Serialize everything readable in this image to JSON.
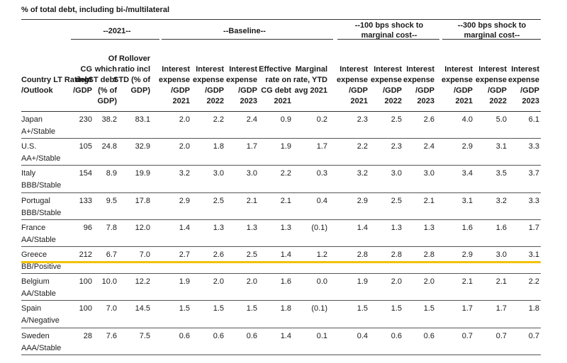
{
  "caption": "% of total debt, including bi-/multilateral",
  "groups": [
    "--2021--",
    "--Baseline--",
    "--100 bps shock to marginal cost--",
    "--300 bps shock to marginal cost--"
  ],
  "headers": [
    "Country LT Rating /Outlook",
    "CG debt /GDP",
    "Of which ST debt (% of GDP)",
    "Rollover ratio incl STD (% of GDP)",
    "Interest expense /GDP 2021",
    "Interest expense /GDP 2022",
    "Interest expense /GDP 2023",
    "Effective rate on CG debt 2021",
    "Marginal rate, YTD avg 2021",
    "Interest expense /GDP 2021",
    "Interest expense /GDP 2022",
    "Interest expense /GDP 2023",
    "Interest expense /GDP 2021",
    "Interest expense /GDP 2022",
    "Interest expense /GDP 2023"
  ],
  "rows": [
    {
      "country": "Japan",
      "rating": "A+/Stable",
      "v": [
        "230",
        "38.2",
        "83.1",
        "2.0",
        "2.2",
        "2.4",
        "0.9",
        "0.2",
        "2.3",
        "2.5",
        "2.6",
        "4.0",
        "5.0",
        "6.1"
      ]
    },
    {
      "country": "U.S.",
      "rating": "AA+/Stable",
      "v": [
        "105",
        "24.8",
        "32.9",
        "2.0",
        "1.8",
        "1.7",
        "1.9",
        "1.7",
        "2.2",
        "2.3",
        "2.4",
        "2.9",
        "3.1",
        "3.3"
      ]
    },
    {
      "country": "Italy",
      "rating": "BBB/Stable",
      "v": [
        "154",
        "8.9",
        "19.9",
        "3.2",
        "3.0",
        "3.0",
        "2.2",
        "0.3",
        "3.2",
        "3.0",
        "3.0",
        "3.4",
        "3.5",
        "3.7"
      ]
    },
    {
      "country": "Portugal",
      "rating": "BBB/Stable",
      "v": [
        "133",
        "9.5",
        "17.8",
        "2.9",
        "2.5",
        "2.1",
        "2.1",
        "0.4",
        "2.9",
        "2.5",
        "2.1",
        "3.1",
        "3.2",
        "3.3"
      ]
    },
    {
      "country": "France",
      "rating": "AA/Stable",
      "v": [
        "96",
        "7.8",
        "12.0",
        "1.4",
        "1.3",
        "1.3",
        "1.3",
        "(0.1)",
        "1.4",
        "1.3",
        "1.3",
        "1.6",
        "1.6",
        "1.7"
      ]
    },
    {
      "country": "Greece",
      "rating": "BB/Positive",
      "v": [
        "212",
        "6.7",
        "7.0",
        "2.7",
        "2.6",
        "2.5",
        "1.4",
        "1.2",
        "2.8",
        "2.8",
        "2.8",
        "2.9",
        "3.0",
        "3.1"
      ]
    },
    {
      "country": "Belgium",
      "rating": "AA/Stable",
      "v": [
        "100",
        "10.0",
        "12.2",
        "1.9",
        "2.0",
        "2.0",
        "1.6",
        "0.0",
        "1.9",
        "2.0",
        "2.0",
        "2.1",
        "2.1",
        "2.2"
      ]
    },
    {
      "country": "Spain",
      "rating": "A/Negative",
      "v": [
        "100",
        "7.0",
        "14.5",
        "1.5",
        "1.5",
        "1.5",
        "1.8",
        "(0.1)",
        "1.5",
        "1.5",
        "1.5",
        "1.7",
        "1.7",
        "1.8"
      ]
    },
    {
      "country": "Sweden",
      "rating": "AAA/Stable",
      "v": [
        "28",
        "7.6",
        "7.5",
        "0.6",
        "0.6",
        "0.6",
        "1.4",
        "0.1",
        "0.4",
        "0.6",
        "0.6",
        "0.7",
        "0.7",
        "0.7"
      ]
    }
  ],
  "highlight_row": "Greece",
  "colors": {
    "highlight": "#f2c200",
    "text": "#1a1a1a",
    "rule": "#555555"
  }
}
